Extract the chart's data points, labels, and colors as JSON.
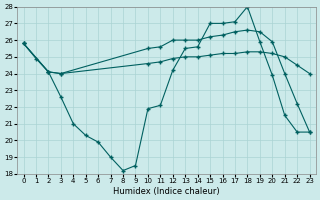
{
  "xlabel": "Humidex (Indice chaleur)",
  "xlim": [
    -0.5,
    23.5
  ],
  "ylim": [
    18,
    28
  ],
  "yticks": [
    18,
    19,
    20,
    21,
    22,
    23,
    24,
    25,
    26,
    27,
    28
  ],
  "xticks": [
    0,
    1,
    2,
    3,
    4,
    5,
    6,
    7,
    8,
    9,
    10,
    11,
    12,
    13,
    14,
    15,
    16,
    17,
    18,
    19,
    20,
    21,
    22,
    23
  ],
  "bg_color": "#cceaea",
  "grid_color": "#aad4d4",
  "line_color": "#006060",
  "series1_x": [
    0,
    2,
    3,
    10,
    11,
    12,
    13,
    14,
    15,
    16,
    17,
    18,
    19,
    20,
    21,
    22,
    23
  ],
  "series1_y": [
    25.8,
    24.1,
    24.0,
    25.5,
    25.6,
    26.0,
    26.0,
    26.0,
    26.2,
    26.3,
    26.5,
    26.6,
    26.5,
    25.9,
    24.0,
    22.2,
    20.5
  ],
  "series2_x": [
    0,
    2,
    3,
    10,
    11,
    12,
    13,
    14,
    15,
    16,
    17,
    18,
    19,
    20,
    21,
    22,
    23
  ],
  "series2_y": [
    25.8,
    24.1,
    24.0,
    24.6,
    24.7,
    24.9,
    25.0,
    25.0,
    25.1,
    25.2,
    25.2,
    25.3,
    25.3,
    25.2,
    25.0,
    24.5,
    24.0
  ],
  "series3_x": [
    0,
    1,
    2,
    3,
    4,
    5,
    6,
    7,
    8,
    9,
    10,
    11,
    12,
    13,
    14,
    15,
    16,
    17,
    18,
    19,
    20,
    21,
    22,
    23
  ],
  "series3_y": [
    25.8,
    24.9,
    24.1,
    22.6,
    21.0,
    20.3,
    19.9,
    19.0,
    18.2,
    18.5,
    21.9,
    22.1,
    24.2,
    25.5,
    25.6,
    27.0,
    27.0,
    27.1,
    28.0,
    25.9,
    23.9,
    21.5,
    20.5,
    20.5
  ]
}
